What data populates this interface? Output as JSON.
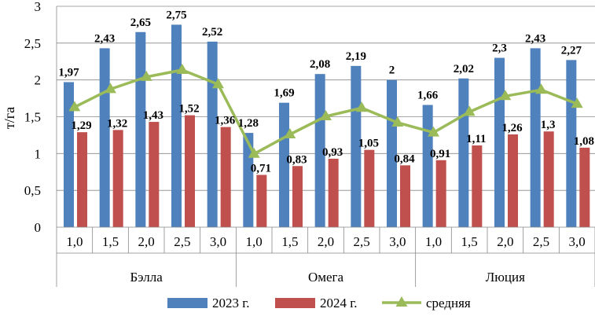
{
  "chart_data": {
    "type": "bar",
    "ylabel": "т/га",
    "ylim": [
      0,
      3
    ],
    "yticks": [
      "0",
      "0,5",
      "1",
      "1,5",
      "2",
      "2,5",
      "3"
    ],
    "grid": true,
    "legend_position": "bottom",
    "categories": [
      "1,0",
      "1,5",
      "2,0",
      "2,5",
      "3,0",
      "1,0",
      "1,5",
      "2,0",
      "2,5",
      "3,0",
      "1,0",
      "1,5",
      "2,0",
      "2,5",
      "3,0"
    ],
    "groups": [
      {
        "name": "Бэлла",
        "count": 5
      },
      {
        "name": "Омега",
        "count": 5
      },
      {
        "name": "Люция",
        "count": 5
      }
    ],
    "series": [
      {
        "name": "2023 г.",
        "type": "bar",
        "color": "#4F81BD",
        "values": [
          1.97,
          2.43,
          2.65,
          2.75,
          2.52,
          1.28,
          1.69,
          2.08,
          2.19,
          2.0,
          1.66,
          2.02,
          2.3,
          2.43,
          2.27
        ],
        "labels": [
          "1,97",
          "2,43",
          "2,65",
          "2,75",
          "2,52",
          "1,28",
          "1,69",
          "2,08",
          "2,19",
          "2",
          "1,66",
          "2,02",
          "2,3",
          "2,43",
          "2,27"
        ]
      },
      {
        "name": "2024 г.",
        "type": "bar",
        "color": "#C0504D",
        "values": [
          1.29,
          1.32,
          1.43,
          1.52,
          1.36,
          0.71,
          0.83,
          0.93,
          1.05,
          0.84,
          0.91,
          1.11,
          1.26,
          1.3,
          1.08
        ],
        "labels": [
          "1,29",
          "1,32",
          "1,43",
          "1,52",
          "1,36",
          "0,71",
          "0,83",
          "0,93",
          "1,05",
          "0,84",
          "0,91",
          "1,11",
          "1,26",
          "1,3",
          "1,08"
        ]
      },
      {
        "name": "средняя",
        "type": "line",
        "color": "#9BBB59",
        "values": [
          1.63,
          1.875,
          2.04,
          2.135,
          1.94,
          0.995,
          1.26,
          1.505,
          1.62,
          1.42,
          1.285,
          1.565,
          1.78,
          1.865,
          1.675
        ]
      }
    ]
  }
}
